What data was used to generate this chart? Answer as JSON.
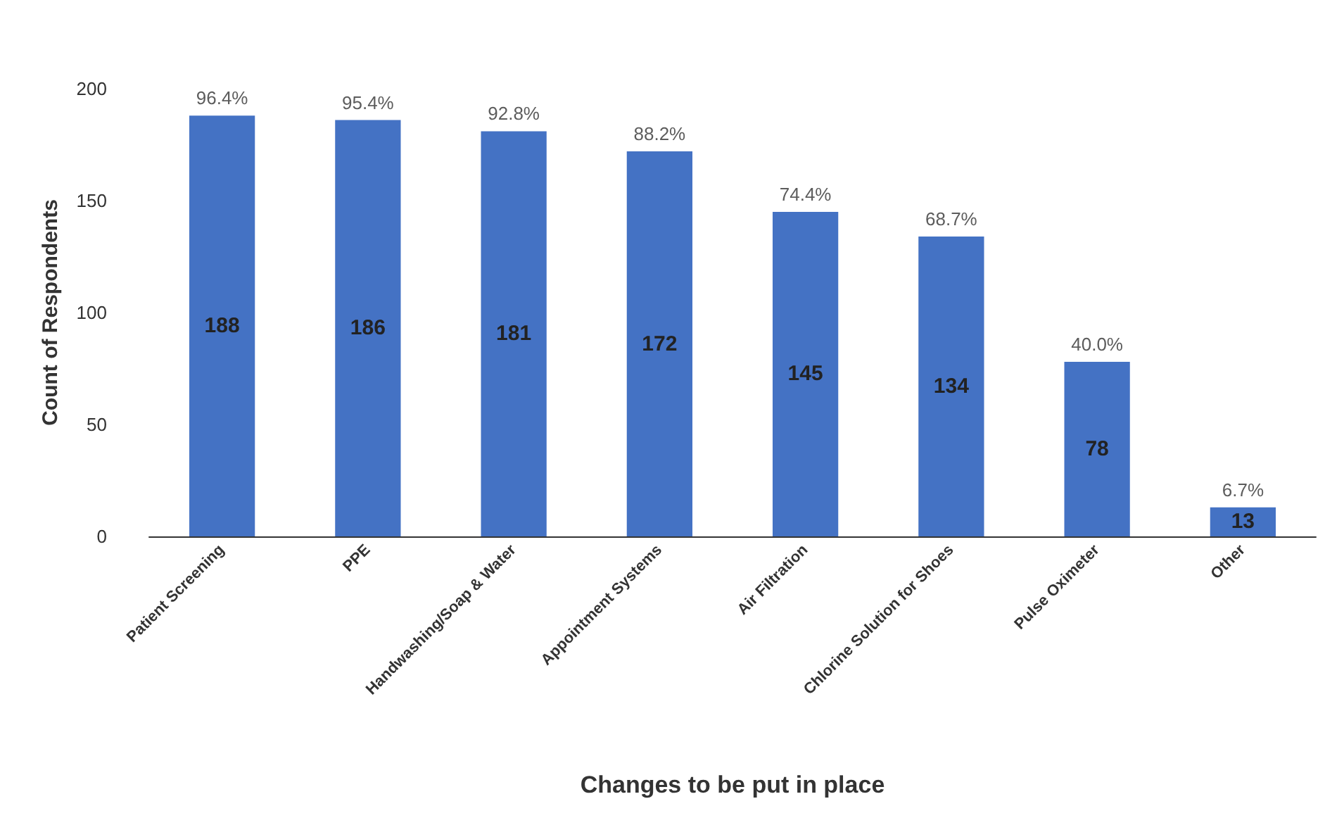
{
  "chart_data": {
    "type": "bar",
    "xlabel": "Changes to be put in place",
    "ylabel": "Count of Respondents",
    "categories": [
      "Patient Screening",
      "PPE",
      "Handwashing/Soap & Water",
      "Appointment Systems",
      "Air Filtration",
      "Chlorine Solution for Shoes",
      "Pulse Oximeter",
      "Other"
    ],
    "values": [
      188,
      186,
      181,
      172,
      145,
      134,
      78,
      13
    ],
    "annotations": [
      {
        "text": "96.4%",
        "x": "Patient Screening",
        "y": 188
      },
      {
        "text": "95.4%",
        "x": "PPE",
        "y": 186
      },
      {
        "text": "92.8%",
        "x": "Handwashing/Soap & Water",
        "y": 181
      },
      {
        "text": "88.2%",
        "x": "Appointment Systems",
        "y": 172
      },
      {
        "text": "74.4%",
        "x": "Air Filtration",
        "y": 145
      },
      {
        "text": "68.7%",
        "x": "Chlorine Solution for Shoes",
        "y": 134
      },
      {
        "text": "40.0%",
        "x": "Pulse Oximeter",
        "y": 78
      },
      {
        "text": "6.7%",
        "x": "Other",
        "y": 13
      }
    ],
    "data_labels": true,
    "color": "#4472c4",
    "ylim": [
      0,
      200
    ],
    "yticks": [
      0,
      50,
      100,
      150,
      200
    ],
    "grid": false
  }
}
